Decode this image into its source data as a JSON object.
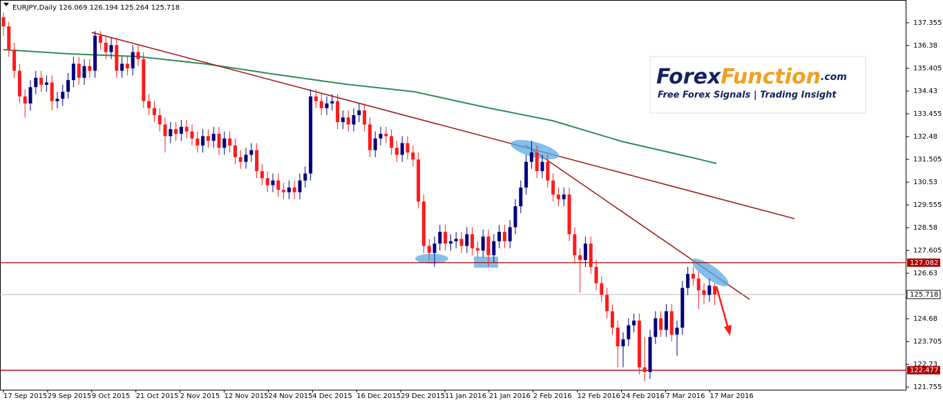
{
  "chart_data": {
    "type": "candlestick",
    "symbol": "EURJPY,Daily",
    "open": [
      137.6,
      137.2,
      136.2,
      135.3,
      134.2,
      133.9,
      134.6,
      135.0,
      134.7,
      134.8,
      134.0,
      134.1,
      134.4,
      134.9,
      135.6,
      135.0,
      135.5,
      135.3,
      136.8,
      136.5,
      136.1,
      136.4,
      135.3,
      135.6,
      135.4,
      136.1,
      135.8,
      134.0,
      133.7,
      133.4,
      133.0,
      132.5,
      132.8,
      132.6,
      132.9,
      132.7,
      132.4,
      132.1,
      132.5,
      132.3,
      132.6,
      132.0,
      132.4,
      132.1,
      131.6,
      131.4,
      131.7,
      131.9,
      131.0,
      130.7,
      130.4,
      130.6,
      130.2,
      130.1,
      130.3,
      130.1,
      130.6,
      130.9,
      134.2,
      134.0,
      133.7,
      133.9,
      134.0,
      133.1,
      133.3,
      133.0,
      133.4,
      133.6,
      133.0,
      131.9,
      132.4,
      132.6,
      132.5,
      132.0,
      131.7,
      132.2,
      131.8,
      131.5,
      129.7,
      127.8,
      127.5,
      127.9,
      128.4,
      127.9,
      128.0,
      128.1,
      127.8,
      128.3,
      127.7,
      127.6,
      128.2,
      127.4,
      128.0,
      128.4,
      128.0,
      128.6,
      129.5,
      130.3,
      131.4,
      131.8,
      131.0,
      131.4,
      130.6,
      130.0,
      129.8,
      130.0,
      128.3,
      127.4,
      127.2,
      127.9,
      126.9,
      126.2,
      125.7,
      125.0,
      124.3,
      123.5,
      123.8,
      124.4,
      124.6,
      122.6,
      122.4,
      123.9,
      124.7,
      124.2,
      125.0,
      124.0,
      124.3,
      126.0,
      126.6,
      126.4,
      125.9,
      125.7,
      126.069
    ],
    "high": [
      137.8,
      137.4,
      136.5,
      135.6,
      134.5,
      134.9,
      135.3,
      135.3,
      135.1,
      135.1,
      134.4,
      134.7,
      135.2,
      135.9,
      135.9,
      135.8,
      135.8,
      137.0,
      137.0,
      136.8,
      136.7,
      136.7,
      135.9,
      135.9,
      136.4,
      136.4,
      136.1,
      134.3,
      134.0,
      133.7,
      133.3,
      133.1,
      133.1,
      133.2,
      133.2,
      133.0,
      132.7,
      132.8,
      132.8,
      132.9,
      132.9,
      132.7,
      132.7,
      132.4,
      131.9,
      132.0,
      132.2,
      132.2,
      131.3,
      131.0,
      130.9,
      130.9,
      130.5,
      130.6,
      130.6,
      130.9,
      131.2,
      134.5,
      134.5,
      134.3,
      134.2,
      134.3,
      134.3,
      133.6,
      133.6,
      133.7,
      133.9,
      133.9,
      133.3,
      132.7,
      132.9,
      132.9,
      132.8,
      132.3,
      132.5,
      132.5,
      132.1,
      131.8,
      130.0,
      128.1,
      128.2,
      128.7,
      128.7,
      128.3,
      128.4,
      128.4,
      128.6,
      128.6,
      128.0,
      128.5,
      128.5,
      128.3,
      128.7,
      128.7,
      128.9,
      129.8,
      130.6,
      131.7,
      132.3,
      132.1,
      131.7,
      131.7,
      130.9,
      130.3,
      130.3,
      130.3,
      128.6,
      127.7,
      128.2,
      128.2,
      127.2,
      126.5,
      126.0,
      125.3,
      124.6,
      124.1,
      124.7,
      124.9,
      124.9,
      123.9,
      124.2,
      125.0,
      125.0,
      125.3,
      125.3,
      124.6,
      126.3,
      126.9,
      126.9,
      126.7,
      126.2,
      126.4,
      126.194
    ],
    "low": [
      136.8,
      135.9,
      135.0,
      133.9,
      133.3,
      133.6,
      134.3,
      134.4,
      134.4,
      133.6,
      133.7,
      133.8,
      134.1,
      134.6,
      134.7,
      134.7,
      135.0,
      135.0,
      136.2,
      135.8,
      135.8,
      135.0,
      135.0,
      135.1,
      135.1,
      135.5,
      133.7,
      133.4,
      133.1,
      132.7,
      131.8,
      132.2,
      132.3,
      132.3,
      132.4,
      132.1,
      131.8,
      131.8,
      132.0,
      132.0,
      131.7,
      131.7,
      131.8,
      131.3,
      131.1,
      131.1,
      131.4,
      130.7,
      130.4,
      130.1,
      130.1,
      129.9,
      129.8,
      129.8,
      129.8,
      129.8,
      130.3,
      130.6,
      133.7,
      133.4,
      133.4,
      133.6,
      132.8,
      132.8,
      132.7,
      132.7,
      133.1,
      132.7,
      131.6,
      131.6,
      132.1,
      132.2,
      131.7,
      131.4,
      131.4,
      131.5,
      131.2,
      129.4,
      127.5,
      127.2,
      126.9,
      127.6,
      127.6,
      127.6,
      127.7,
      127.5,
      127.5,
      127.4,
      127.3,
      127.3,
      126.9,
      127.1,
      127.7,
      127.7,
      127.7,
      128.3,
      129.2,
      130.0,
      131.1,
      130.7,
      130.7,
      130.3,
      129.7,
      129.5,
      129.5,
      128.0,
      127.1,
      125.8,
      126.9,
      126.6,
      125.9,
      125.4,
      124.7,
      124.0,
      122.6,
      122.6,
      123.5,
      124.1,
      122.3,
      122.0,
      122.1,
      123.6,
      123.9,
      123.9,
      123.7,
      123.1,
      124.0,
      125.7,
      126.1,
      125.1,
      125.3,
      125.4,
      125.264
    ],
    "close": [
      137.2,
      136.2,
      135.3,
      134.2,
      133.9,
      134.6,
      135.0,
      134.7,
      134.8,
      134.0,
      134.1,
      134.4,
      134.9,
      135.6,
      135.0,
      135.5,
      135.3,
      136.8,
      136.5,
      136.1,
      136.4,
      135.3,
      135.6,
      135.4,
      136.1,
      135.8,
      134.0,
      133.7,
      133.4,
      133.0,
      132.5,
      132.8,
      132.6,
      132.9,
      132.7,
      132.4,
      132.1,
      132.5,
      132.3,
      132.6,
      132.0,
      132.4,
      132.1,
      131.6,
      131.4,
      131.7,
      131.9,
      131.0,
      130.7,
      130.4,
      130.6,
      130.2,
      130.1,
      130.3,
      130.1,
      130.6,
      130.9,
      134.2,
      134.0,
      133.7,
      133.9,
      134.0,
      133.1,
      133.3,
      133.0,
      133.4,
      133.6,
      133.0,
      131.9,
      132.4,
      132.6,
      132.5,
      132.0,
      131.7,
      132.2,
      131.8,
      131.5,
      129.7,
      127.8,
      127.5,
      127.9,
      128.4,
      127.9,
      128.0,
      128.1,
      127.8,
      128.3,
      127.7,
      127.6,
      128.2,
      127.4,
      128.0,
      128.4,
      128.0,
      128.6,
      129.5,
      130.3,
      131.4,
      131.8,
      131.0,
      131.4,
      130.6,
      130.0,
      129.8,
      130.0,
      128.3,
      127.4,
      127.2,
      127.9,
      126.9,
      126.2,
      125.7,
      125.0,
      124.3,
      123.5,
      123.8,
      124.4,
      124.6,
      122.6,
      122.4,
      123.9,
      124.7,
      124.2,
      125.0,
      124.0,
      124.3,
      126.0,
      126.6,
      126.4,
      125.9,
      125.7,
      126.1,
      125.718
    ],
    "up_color": "#00007f",
    "down_color": "#ff1a1a",
    "x_labels": [
      "17 Sep 2015",
      "29 Sep 2015",
      "9 Oct 2015",
      "21 Oct 2015",
      "2 Nov 2015",
      "12 Nov 2015",
      "24 Nov 2015",
      "4 Dec 2015",
      "16 Dec 2015",
      "29 Dec 2015",
      "11 Jan 2016",
      "21 Jan 2016",
      "2 Feb 2016",
      "12 Feb 2016",
      "24 Feb 2016",
      "7 Mar 2016",
      "17 Mar 2016"
    ],
    "ylim": [
      121.64,
      138.33
    ],
    "yticks": [
      137.355,
      136.38,
      135.405,
      134.43,
      133.455,
      132.48,
      131.505,
      130.53,
      129.555,
      128.58,
      127.605,
      126.63,
      124.68,
      123.705,
      122.73,
      121.755
    ],
    "levels": [
      127.082,
      122.477
    ],
    "level_color": "#b00000"
  },
  "logo": {
    "part1": "Forex",
    "part2": "Function",
    "part3": ".com",
    "tagline": "Free Forex Signals | Trading Insight"
  }
}
